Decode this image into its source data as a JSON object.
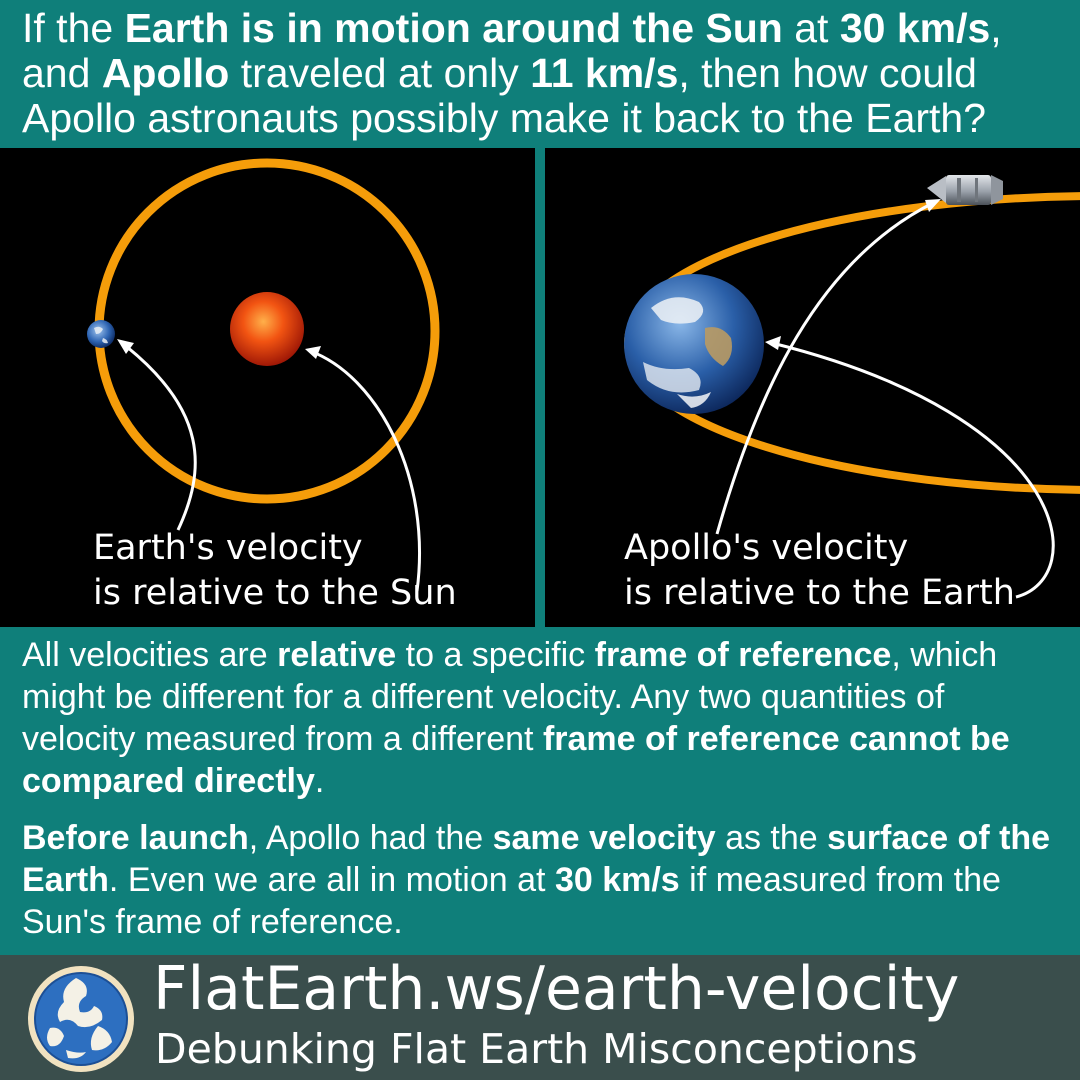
{
  "question": {
    "l1_a": "If the ",
    "l1_b": "Earth is in motion around the Sun",
    "l1_c": " at ",
    "l1_d": "30 km/s",
    "l1_e": ",",
    "l2_a": "and ",
    "l2_b": "Apollo",
    "l2_c": " traveled at only ",
    "l2_d": "11 km/s",
    "l2_e": ", then how could",
    "l3": "Apollo astronauts possibly make it back to the Earth?"
  },
  "left_panel": {
    "caption_line1": "Earth's velocity",
    "caption_line2": "is relative to the Sun"
  },
  "right_panel": {
    "caption_line1": "Apollo's velocity",
    "caption_line2": "is relative to the Earth"
  },
  "explanation": {
    "p1_a": "All velocities are ",
    "p1_b": "relative",
    "p1_c": " to a specific ",
    "p1_d": "frame of reference",
    "p1_e": ", which might be different for a different velocity. Any two quantities of velocity measured from a different ",
    "p1_f": "frame of reference cannot be compared directly",
    "p1_g": ".",
    "p2_a": "Before launch",
    "p2_b": ", Apollo had the ",
    "p2_c": "same velocity",
    "p2_d": " as the ",
    "p2_e": "surface of the Earth",
    "p2_f": ". Even we are all in motion at ",
    "p2_g": "30 km/s",
    "p2_h": " if measured from the Sun's frame of reference."
  },
  "footer": {
    "url": "FlatEarth.ws/earth-velocity",
    "tagline": "Debunking Flat Earth Misconceptions"
  },
  "colors": {
    "background": "#0f7f7a",
    "orbit": "#f59d0a",
    "footer": "#3a4e4c",
    "text": "#ffffff"
  }
}
